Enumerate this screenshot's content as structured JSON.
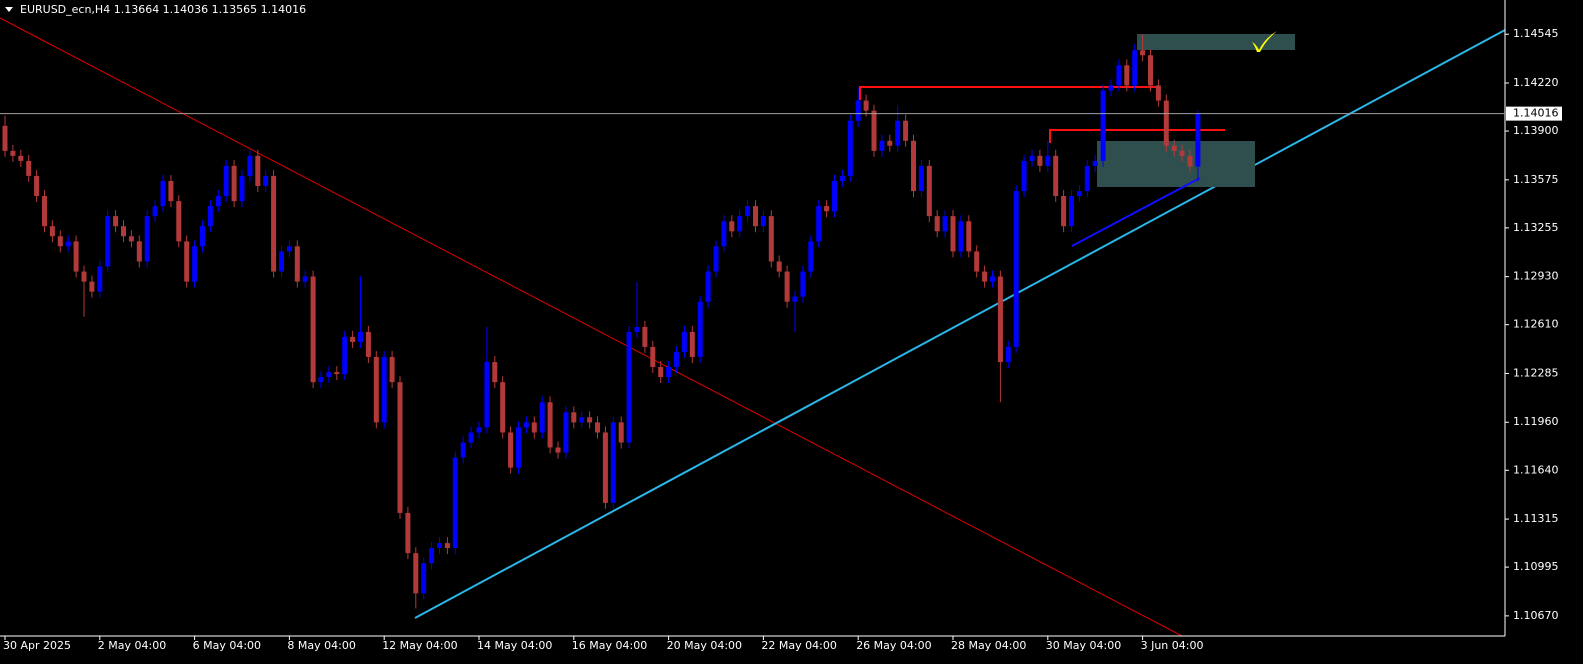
{
  "chart_data": {
    "type": "candlestick",
    "title": "EURUSD_ecn,H4  1.13664 1.14036 1.13565 1.14016",
    "up_color": "#0000ff",
    "down_color": "#b33a3a",
    "last_price": 1.14016,
    "ylim": [
      1.10536,
      1.14773
    ],
    "yticks": [
      1.14545,
      {
        "value": 1.1422,
        "label": "1.14220"
      },
      {
        "value": 1.139,
        "label": "1.13900"
      },
      1.13575,
      1.13255,
      {
        "value": 1.1293,
        "label": "1.12930"
      },
      {
        "value": 1.1261,
        "label": "1.12610"
      },
      1.12285,
      {
        "value": 1.1196,
        "label": "1.11960"
      },
      {
        "value": 1.1164,
        "label": "1.11640"
      },
      1.11315,
      1.10995,
      {
        "value": 1.1067,
        "label": "1.10670"
      }
    ],
    "categories": [
      "30 Apr 2025",
      null,
      null,
      null,
      null,
      null,
      null,
      null,
      null,
      null,
      null,
      null,
      "2 May 04:00",
      null,
      null,
      null,
      null,
      null,
      null,
      null,
      null,
      null,
      null,
      null,
      "6 May 04:00",
      null,
      null,
      null,
      null,
      null,
      null,
      null,
      null,
      null,
      null,
      null,
      "8 May 04:00",
      null,
      null,
      null,
      null,
      null,
      null,
      null,
      null,
      null,
      null,
      null,
      "12 May 04:00",
      null,
      null,
      null,
      null,
      null,
      null,
      null,
      null,
      null,
      null,
      null,
      "14 May 04:00",
      null,
      null,
      null,
      null,
      null,
      null,
      null,
      null,
      null,
      null,
      null,
      "16 May 04:00",
      null,
      null,
      null,
      null,
      null,
      null,
      null,
      null,
      null,
      null,
      null,
      "20 May 04:00",
      null,
      null,
      null,
      null,
      null,
      null,
      null,
      null,
      null,
      null,
      null,
      "22 May 04:00",
      null,
      null,
      null,
      null,
      null,
      null,
      null,
      null,
      null,
      null,
      null,
      "26 May 04:00",
      null,
      null,
      null,
      null,
      null,
      null,
      null,
      null,
      null,
      null,
      null,
      "28 May 04:00",
      null,
      null,
      null,
      null,
      null,
      null,
      null,
      null,
      null,
      null,
      null,
      "30 May 04:00",
      null,
      null,
      null,
      null,
      null,
      null,
      null,
      null,
      null,
      null,
      null,
      "3 Jun 04:00",
      null,
      null,
      null,
      null,
      null,
      null,
      null
    ],
    "candles": [
      [
        1.13935,
        1.14003,
        1.13728,
        1.13768
      ],
      [
        1.13768,
        1.13808,
        1.13695,
        1.13735
      ],
      [
        1.13735,
        1.13775,
        1.13661,
        1.13701
      ],
      [
        1.13701,
        1.13741,
        1.13561,
        1.13601
      ],
      [
        1.13601,
        1.13641,
        1.13427,
        1.13467
      ],
      [
        1.13467,
        1.13507,
        1.13226,
        1.13266
      ],
      [
        1.13266,
        1.13306,
        1.13159,
        1.13199
      ],
      [
        1.13199,
        1.13239,
        1.13092,
        1.13132
      ],
      [
        1.13132,
        1.13205,
        1.13092,
        1.13165
      ],
      [
        1.13165,
        1.13205,
        1.12924,
        1.12964
      ],
      [
        1.12964,
        1.13004,
        1.12663,
        1.12897
      ],
      [
        1.12897,
        1.12937,
        1.1279,
        1.1283
      ],
      [
        1.1283,
        1.13038,
        1.1279,
        1.12998
      ],
      [
        1.12998,
        1.13373,
        1.12958,
        1.13333
      ],
      [
        1.13333,
        1.13373,
        1.13226,
        1.13266
      ],
      [
        1.13266,
        1.13306,
        1.13159,
        1.13199
      ],
      [
        1.13199,
        1.13239,
        1.13125,
        1.13165
      ],
      [
        1.13165,
        1.13205,
        1.12991,
        1.13031
      ],
      [
        1.13031,
        1.13373,
        1.12991,
        1.13333
      ],
      [
        1.13333,
        1.1344,
        1.13293,
        1.134
      ],
      [
        1.134,
        1.13607,
        1.1336,
        1.13567
      ],
      [
        1.13567,
        1.13607,
        1.13393,
        1.13433
      ],
      [
        1.13433,
        1.13473,
        1.13125,
        1.13165
      ],
      [
        1.13165,
        1.13205,
        1.12857,
        1.12897
      ],
      [
        1.12897,
        1.13172,
        1.12857,
        1.13132
      ],
      [
        1.13132,
        1.13306,
        1.13092,
        1.13266
      ],
      [
        1.13266,
        1.1344,
        1.13226,
        1.134
      ],
      [
        1.134,
        1.13507,
        1.1336,
        1.13467
      ],
      [
        1.13467,
        1.13708,
        1.13427,
        1.13668
      ],
      [
        1.13668,
        1.13708,
        1.13393,
        1.13433
      ],
      [
        1.13433,
        1.13641,
        1.13393,
        1.13601
      ],
      [
        1.13601,
        1.13775,
        1.13561,
        1.13735
      ],
      [
        1.13735,
        1.13775,
        1.13494,
        1.13534
      ],
      [
        1.13534,
        1.13641,
        1.13494,
        1.13601
      ],
      [
        1.13601,
        1.13641,
        1.12924,
        1.12964
      ],
      [
        1.12964,
        1.13138,
        1.12924,
        1.13098
      ],
      [
        1.13098,
        1.13172,
        1.13058,
        1.13132
      ],
      [
        1.13132,
        1.13172,
        1.12857,
        1.12897
      ],
      [
        1.12897,
        1.12971,
        1.12857,
        1.12931
      ],
      [
        1.12931,
        1.12971,
        1.12187,
        1.12227
      ],
      [
        1.12227,
        1.12301,
        1.12187,
        1.12261
      ],
      [
        1.12261,
        1.12334,
        1.12221,
        1.12294
      ],
      [
        1.12294,
        1.12334,
        1.12241,
        1.12281
      ],
      [
        1.12281,
        1.12569,
        1.12241,
        1.12529
      ],
      [
        1.12529,
        1.12569,
        1.12455,
        1.12495
      ],
      [
        1.12495,
        1.12931,
        1.12455,
        1.12562
      ],
      [
        1.12562,
        1.12602,
        1.12355,
        1.12395
      ],
      [
        1.12395,
        1.12435,
        1.11919,
        1.11959
      ],
      [
        1.11959,
        1.12435,
        1.11919,
        1.12395
      ],
      [
        1.12395,
        1.12435,
        1.12187,
        1.12227
      ],
      [
        1.12227,
        1.12267,
        1.11316,
        1.11356
      ],
      [
        1.11356,
        1.11396,
        1.11048,
        1.11088
      ],
      [
        1.11088,
        1.11128,
        1.1072,
        1.1082
      ],
      [
        1.1082,
        1.11061,
        1.1078,
        1.11021
      ],
      [
        1.11021,
        1.11162,
        1.10981,
        1.11122
      ],
      [
        1.11122,
        1.11195,
        1.11082,
        1.11155
      ],
      [
        1.11155,
        1.11195,
        1.11082,
        1.11122
      ],
      [
        1.11122,
        1.11765,
        1.11082,
        1.11725
      ],
      [
        1.11725,
        1.11865,
        1.11685,
        1.11825
      ],
      [
        1.11825,
        1.11932,
        1.11785,
        1.11892
      ],
      [
        1.11892,
        1.11966,
        1.11852,
        1.11926
      ],
      [
        1.11926,
        1.12595,
        1.11886,
        1.12361
      ],
      [
        1.12361,
        1.12401,
        1.12187,
        1.12227
      ],
      [
        1.12227,
        1.12267,
        1.11852,
        1.11892
      ],
      [
        1.11892,
        1.11932,
        1.11618,
        1.11658
      ],
      [
        1.11658,
        1.11966,
        1.11618,
        1.11926
      ],
      [
        1.11926,
        1.11999,
        1.11886,
        1.11959
      ],
      [
        1.11959,
        1.11999,
        1.11852,
        1.11892
      ],
      [
        1.11892,
        1.12133,
        1.11852,
        1.12093
      ],
      [
        1.12093,
        1.12133,
        1.11752,
        1.11792
      ],
      [
        1.11792,
        1.11832,
        1.11718,
        1.11758
      ],
      [
        1.11758,
        1.12066,
        1.11718,
        1.12026
      ],
      [
        1.12026,
        1.12066,
        1.11919,
        1.11959
      ],
      [
        1.11959,
        1.12033,
        1.11919,
        1.11993
      ],
      [
        1.11993,
        1.12033,
        1.11919,
        1.11959
      ],
      [
        1.11959,
        1.11999,
        1.11852,
        1.11892
      ],
      [
        1.11892,
        1.11932,
        1.11383,
        1.11423
      ],
      [
        1.11423,
        1.11999,
        1.11383,
        1.11959
      ],
      [
        1.11959,
        1.11999,
        1.11785,
        1.11825
      ],
      [
        1.11825,
        1.12602,
        1.11785,
        1.12562
      ],
      [
        1.12562,
        1.12897,
        1.12522,
        1.12595
      ],
      [
        1.12595,
        1.12635,
        1.12422,
        1.12462
      ],
      [
        1.12462,
        1.12502,
        1.12288,
        1.12328
      ],
      [
        1.12328,
        1.12368,
        1.12221,
        1.12261
      ],
      [
        1.12261,
        1.12368,
        1.12221,
        1.12328
      ],
      [
        1.12328,
        1.12468,
        1.12288,
        1.12428
      ],
      [
        1.12428,
        1.12602,
        1.12388,
        1.12562
      ],
      [
        1.12562,
        1.12602,
        1.12355,
        1.12395
      ],
      [
        1.12395,
        1.12803,
        1.12355,
        1.12763
      ],
      [
        1.12763,
        1.13004,
        1.12723,
        1.12964
      ],
      [
        1.12964,
        1.13172,
        1.12924,
        1.13132
      ],
      [
        1.13132,
        1.13339,
        1.13092,
        1.13299
      ],
      [
        1.13299,
        1.13339,
        1.13192,
        1.13232
      ],
      [
        1.13232,
        1.13373,
        1.13192,
        1.13333
      ],
      [
        1.13333,
        1.1344,
        1.13293,
        1.134
      ],
      [
        1.134,
        1.1344,
        1.13226,
        1.13266
      ],
      [
        1.13266,
        1.13373,
        1.13226,
        1.13333
      ],
      [
        1.13333,
        1.13373,
        1.12991,
        1.13031
      ],
      [
        1.13031,
        1.13071,
        1.12924,
        1.12964
      ],
      [
        1.12964,
        1.13004,
        1.12723,
        1.12763
      ],
      [
        1.12763,
        1.12837,
        1.12562,
        1.12797
      ],
      [
        1.12797,
        1.13004,
        1.12757,
        1.12964
      ],
      [
        1.12964,
        1.13205,
        1.12924,
        1.13165
      ],
      [
        1.13165,
        1.1344,
        1.13125,
        1.134
      ],
      [
        1.134,
        1.1344,
        1.13326,
        1.13366
      ],
      [
        1.13366,
        1.13607,
        1.13326,
        1.13567
      ],
      [
        1.13567,
        1.13641,
        1.13527,
        1.13601
      ],
      [
        1.13601,
        1.14009,
        1.13561,
        1.13969
      ],
      [
        1.13969,
        1.1419,
        1.13929,
        1.14103
      ],
      [
        1.14103,
        1.14143,
        1.13996,
        1.14036
      ],
      [
        1.14036,
        1.14076,
        1.13728,
        1.13768
      ],
      [
        1.13768,
        1.13875,
        1.13728,
        1.13835
      ],
      [
        1.13835,
        1.13875,
        1.13762,
        1.13802
      ],
      [
        1.13802,
        1.1407,
        1.13762,
        1.13969
      ],
      [
        1.13969,
        1.14009,
        1.13795,
        1.13835
      ],
      [
        1.13835,
        1.13875,
        1.1346,
        1.135
      ],
      [
        1.135,
        1.13708,
        1.1346,
        1.13668
      ],
      [
        1.13668,
        1.13708,
        1.13293,
        1.13333
      ],
      [
        1.13333,
        1.13373,
        1.13192,
        1.13232
      ],
      [
        1.13232,
        1.13373,
        1.13192,
        1.13333
      ],
      [
        1.13333,
        1.13373,
        1.13058,
        1.13098
      ],
      [
        1.13098,
        1.13339,
        1.13058,
        1.13299
      ],
      [
        1.13299,
        1.13339,
        1.13058,
        1.13098
      ],
      [
        1.13098,
        1.13138,
        1.12924,
        1.12964
      ],
      [
        1.12964,
        1.13004,
        1.12857,
        1.12897
      ],
      [
        1.12897,
        1.12971,
        1.12857,
        1.12931
      ],
      [
        1.12931,
        1.12971,
        1.12093,
        1.12361
      ],
      [
        1.12361,
        1.12502,
        1.12321,
        1.12462
      ],
      [
        1.12462,
        1.1354,
        1.12422,
        1.135
      ],
      [
        1.135,
        1.13741,
        1.1346,
        1.13701
      ],
      [
        1.13701,
        1.13775,
        1.13661,
        1.13735
      ],
      [
        1.13735,
        1.13775,
        1.13628,
        1.13668
      ],
      [
        1.13668,
        1.13835,
        1.13628,
        1.13735
      ],
      [
        1.13735,
        1.13775,
        1.13427,
        1.13467
      ],
      [
        1.13467,
        1.13507,
        1.13226,
        1.13266
      ],
      [
        1.13266,
        1.13507,
        1.13226,
        1.13467
      ],
      [
        1.13467,
        1.1354,
        1.13427,
        1.135
      ],
      [
        1.135,
        1.13708,
        1.1346,
        1.13668
      ],
      [
        1.13668,
        1.13741,
        1.13628,
        1.13701
      ],
      [
        1.13701,
        1.1421,
        1.13661,
        1.1417
      ],
      [
        1.1417,
        1.14244,
        1.1413,
        1.14204
      ],
      [
        1.14204,
        1.14378,
        1.14164,
        1.14338
      ],
      [
        1.14338,
        1.14378,
        1.14164,
        1.14204
      ],
      [
        1.14204,
        1.14478,
        1.14164,
        1.14438
      ],
      [
        1.14438,
        1.14545,
        1.14365,
        1.14405
      ],
      [
        1.14405,
        1.14445,
        1.14164,
        1.14204
      ],
      [
        1.14204,
        1.14244,
        1.14063,
        1.14103
      ],
      [
        1.14103,
        1.14143,
        1.13762,
        1.13802
      ],
      [
        1.13802,
        1.13842,
        1.13728,
        1.13768
      ],
      [
        1.13768,
        1.13808,
        1.13695,
        1.13735
      ],
      [
        1.13735,
        1.13775,
        1.13624,
        1.13664
      ],
      [
        1.13664,
        1.14036,
        1.13565,
        1.14016
      ]
    ]
  }
}
